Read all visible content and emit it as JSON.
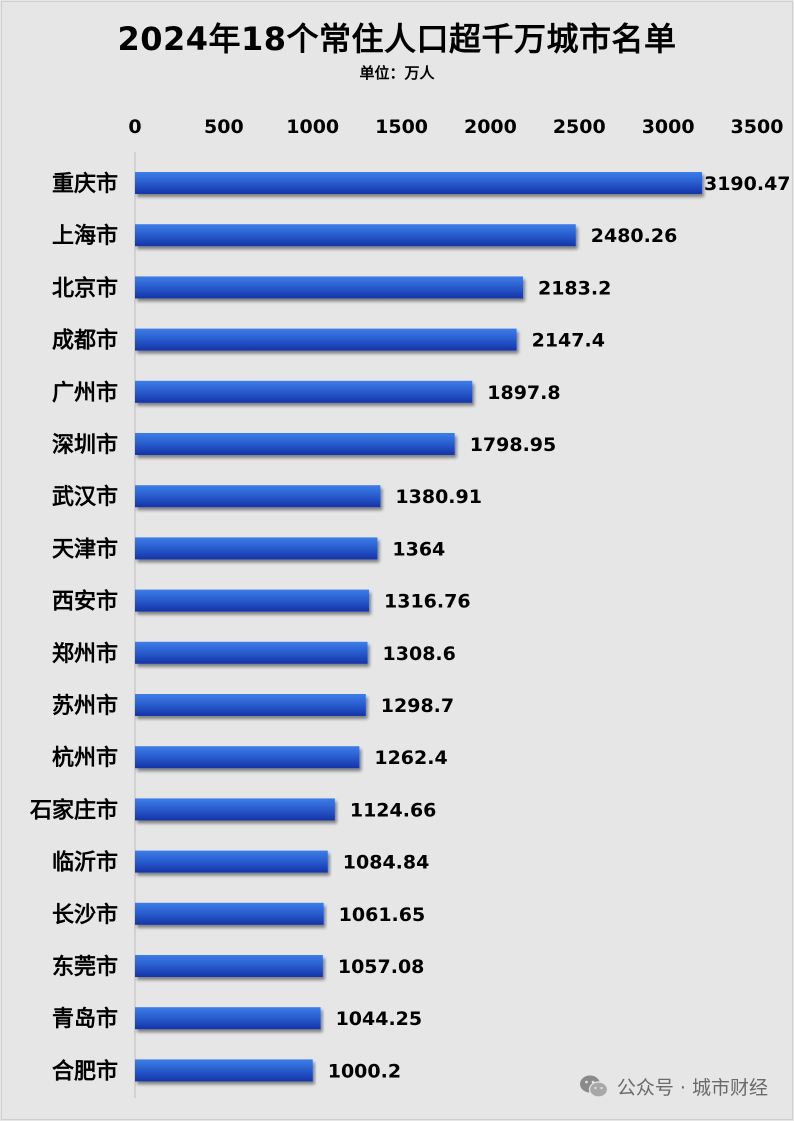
{
  "title": "2024年18个常住人口超千万城市名单",
  "subtitle": "单位：万人",
  "watermark": {
    "text": "公众号 · 城市财经",
    "icon": "wechat-icon"
  },
  "colors": {
    "bar_top": "#3d7de8",
    "bar_bottom": "#1434a8",
    "background": "#e6e6e6"
  },
  "chart_data": {
    "type": "bar",
    "orientation": "horizontal",
    "title": "2024年18个常住人口超千万城市名单",
    "subtitle": "单位：万人",
    "xlim": [
      0,
      3500
    ],
    "ticks": [
      0,
      500,
      1000,
      1500,
      2000,
      2500,
      3000,
      3500
    ],
    "axis_position": "top",
    "grid": false,
    "categories": [
      "重庆市",
      "上海市",
      "北京市",
      "成都市",
      "广州市",
      "深圳市",
      "武汉市",
      "天津市",
      "西安市",
      "郑州市",
      "苏州市",
      "杭州市",
      "石家庄市",
      "临沂市",
      "长沙市",
      "东莞市",
      "青岛市",
      "合肥市"
    ],
    "values": [
      3190.47,
      2480.26,
      2183.2,
      2147.4,
      1897.8,
      1798.95,
      1380.91,
      1364,
      1316.76,
      1308.6,
      1298.7,
      1262.4,
      1124.66,
      1084.84,
      1061.65,
      1057.08,
      1044.25,
      1000.2
    ],
    "value_labels": [
      "3190.47",
      "2480.26",
      "2183.2",
      "2147.4",
      "1897.8",
      "1798.95",
      "1380.91",
      "1364",
      "1316.76",
      "1308.6",
      "1298.7",
      "1262.4",
      "1124.66",
      "1084.84",
      "1061.65",
      "1057.08",
      "1044.25",
      "1000.2"
    ]
  }
}
